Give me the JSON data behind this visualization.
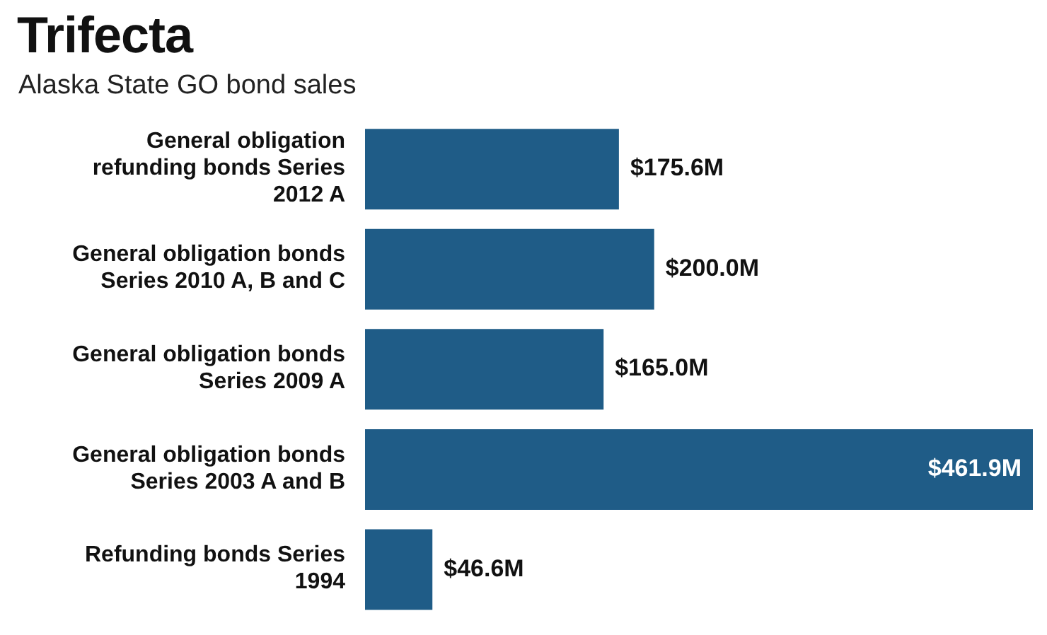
{
  "chart_data": {
    "type": "bar",
    "orientation": "horizontal",
    "title": "Trifecta",
    "subtitle": "Alaska State GO bond sales",
    "categories": [
      "General obligation refunding bonds Series 2012 A",
      "General obligation bonds Series 2010 A, B and C",
      "General obligation bonds Series 2009 A",
      "General obligation bonds Series 2003 A and B",
      "Refunding bonds Series 1994"
    ],
    "values": [
      175.6,
      200.0,
      165.0,
      461.9,
      46.6
    ],
    "value_labels": [
      "$175.6M",
      "$200.0M",
      "$165.0M",
      "$461.9M",
      "$46.6M"
    ],
    "color": "#1f5c87",
    "grid": false
  }
}
